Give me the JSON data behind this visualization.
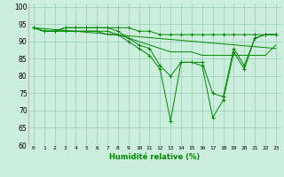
{
  "xlabel": "Humidité relative (%)",
  "xlim": [
    -0.5,
    23.5
  ],
  "ylim": [
    60,
    101
  ],
  "background_color": "#cceedd",
  "grid_color": "#99ccbb",
  "line_color": "#008800",
  "xtick_labels": [
    "0",
    "1",
    "2",
    "3",
    "4",
    "5",
    "6",
    "7",
    "8",
    "9",
    "10",
    "11",
    "12",
    "13",
    "14",
    "15",
    "16",
    "17",
    "18",
    "19",
    "20",
    "21",
    "22",
    "23"
  ],
  "ytick_values": [
    60,
    65,
    70,
    75,
    80,
    85,
    90,
    95,
    100
  ],
  "lines": [
    {
      "x": [
        0,
        1,
        2,
        3,
        4,
        5,
        6,
        7,
        8,
        9,
        10,
        11,
        12,
        13,
        14,
        15,
        16,
        17,
        18,
        19,
        20,
        21,
        22,
        23
      ],
      "y": [
        94,
        93,
        93,
        94,
        94,
        94,
        94,
        94,
        94,
        94,
        93,
        93,
        92,
        92,
        92,
        92,
        92,
        92,
        92,
        92,
        92,
        92,
        92,
        92
      ],
      "marker": true
    },
    {
      "x": [
        0,
        1,
        2,
        3,
        4,
        5,
        6,
        7,
        8,
        9,
        10,
        11,
        12,
        13,
        14,
        15,
        16,
        17,
        18,
        19,
        20,
        21,
        22,
        23
      ],
      "y": [
        94,
        93,
        93,
        94,
        94,
        94,
        94,
        94,
        93,
        91,
        89,
        88,
        83,
        80,
        84,
        84,
        84,
        75,
        74,
        88,
        83,
        91,
        92,
        92
      ],
      "marker": true
    },
    {
      "x": [
        0,
        1,
        2,
        3,
        4,
        5,
        6,
        7,
        8,
        9,
        10,
        11,
        12,
        13,
        14,
        15,
        16,
        17,
        18,
        19,
        20,
        21,
        22,
        23
      ],
      "y": [
        94,
        93,
        93,
        93,
        93,
        93,
        93,
        93,
        92,
        90,
        88,
        86,
        82,
        67,
        84,
        84,
        83,
        68,
        73,
        87,
        82,
        91,
        92,
        92
      ],
      "marker": true
    },
    {
      "x": [
        0,
        23
      ],
      "y": [
        94,
        88
      ],
      "marker": false
    },
    {
      "x": [
        0,
        1,
        2,
        3,
        4,
        5,
        6,
        7,
        8,
        9,
        10,
        11,
        12,
        13,
        14,
        15,
        16,
        17,
        18,
        19,
        20,
        21,
        22,
        23
      ],
      "y": [
        94,
        93,
        93,
        93,
        93,
        93,
        93,
        92,
        92,
        91,
        90,
        89,
        88,
        87,
        87,
        87,
        86,
        86,
        86,
        86,
        86,
        86,
        86,
        89
      ],
      "marker": false
    }
  ]
}
